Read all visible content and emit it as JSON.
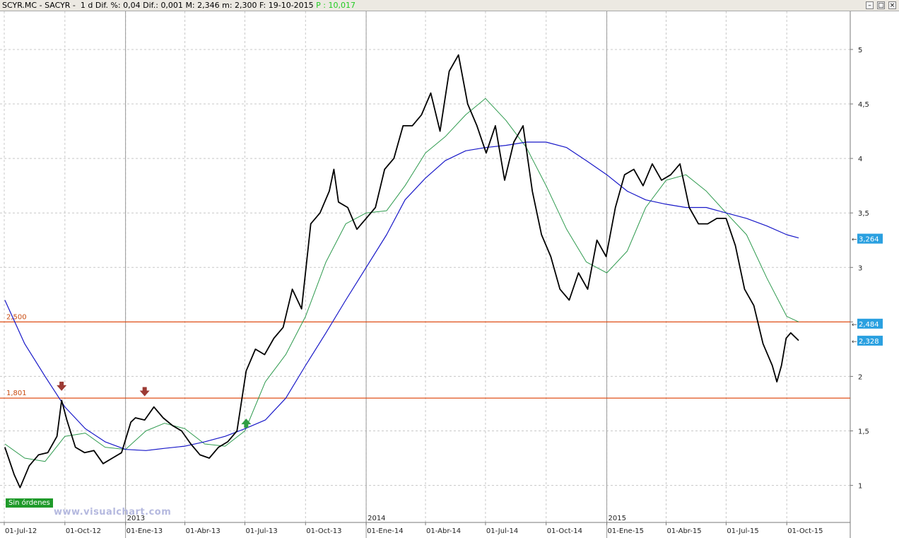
{
  "header": {
    "symbol": "SCYR.MC - SACYR -",
    "period": "1 d",
    "dif_pct_label": "Dif. %: 0,04",
    "dif_label": "Dif.: 0,001",
    "max_label": "M: 2,346",
    "min_label": "m: 2,300",
    "date_label": "F: 19-10-2015",
    "p_label": "P : 10,017"
  },
  "window_buttons": {
    "minimize": "–",
    "maximize": "□",
    "close": "×"
  },
  "watermark": "www.visualchart.com",
  "status_badge": "Sin órdenes",
  "colors": {
    "price": "#000000",
    "ma_short": "#2e9a4e",
    "ma_long": "#1818c8",
    "level_line": "#e05018",
    "level_label": "#c84b10",
    "badge_bg": "#2aa0e0",
    "arrow_down": "#9c3a34",
    "arrow_up": "#2f9e44",
    "grid": "#c8c8c8"
  },
  "chart_data": {
    "type": "line",
    "title": "SCYR.MC - SACYR -",
    "xlabel": "",
    "ylabel": "",
    "ylim": [
      0.66,
      5.35
    ],
    "y_ticks": [
      {
        "value": 1,
        "label": "1"
      },
      {
        "value": 1.5,
        "label": "1,5"
      },
      {
        "value": 2,
        "label": "2"
      },
      {
        "value": 2.5,
        "label": "2,5"
      },
      {
        "value": 3,
        "label": "3"
      },
      {
        "value": 3.5,
        "label": "3,5"
      },
      {
        "value": 4,
        "label": "4"
      },
      {
        "value": 4.5,
        "label": "4,5"
      },
      {
        "value": 5,
        "label": "5"
      }
    ],
    "x_range": [
      "2012-07-01",
      "2015-10-19"
    ],
    "x_ticks": [
      {
        "date": "2012-07-01",
        "label": "01-Jul-12"
      },
      {
        "date": "2012-10-01",
        "label": "01-Oct-12"
      },
      {
        "date": "2013-01-01",
        "label": "01-Ene-13"
      },
      {
        "date": "2013-04-01",
        "label": "01-Abr-13"
      },
      {
        "date": "2013-07-01",
        "label": "01-Jul-13"
      },
      {
        "date": "2013-10-01",
        "label": "01-Oct-13"
      },
      {
        "date": "2014-01-01",
        "label": "01-Ene-14"
      },
      {
        "date": "2014-04-01",
        "label": "01-Abr-14"
      },
      {
        "date": "2014-07-01",
        "label": "01-Jul-14"
      },
      {
        "date": "2014-10-01",
        "label": "01-Oct-14"
      },
      {
        "date": "2015-01-01",
        "label": "01-Ene-15"
      },
      {
        "date": "2015-04-01",
        "label": "01-Abr-15"
      },
      {
        "date": "2015-07-01",
        "label": "01-Jul-15"
      },
      {
        "date": "2015-10-01",
        "label": "01-Oct-15"
      }
    ],
    "year_markers": [
      {
        "date": "2013-01-01",
        "label": "2013"
      },
      {
        "date": "2014-01-01",
        "label": "2014"
      },
      {
        "date": "2015-01-01",
        "label": "2015"
      }
    ],
    "grid": true,
    "series": [
      {
        "name": "",
        "role": "price",
        "x": [
          "2012-07-02",
          "2012-07-16",
          "2012-07-25",
          "2012-08-08",
          "2012-08-22",
          "2012-09-05",
          "2012-09-19",
          "2012-09-26",
          "2012-10-04",
          "2012-10-17",
          "2012-10-31",
          "2012-11-14",
          "2012-11-28",
          "2012-12-12",
          "2012-12-26",
          "2013-01-09",
          "2013-01-16",
          "2013-01-30",
          "2013-02-13",
          "2013-02-27",
          "2013-03-13",
          "2013-03-27",
          "2013-04-10",
          "2013-04-24",
          "2013-05-08",
          "2013-05-22",
          "2013-06-05",
          "2013-06-19",
          "2013-07-03",
          "2013-07-17",
          "2013-07-31",
          "2013-08-14",
          "2013-08-28",
          "2013-09-11",
          "2013-09-25",
          "2013-10-09",
          "2013-10-23",
          "2013-11-06",
          "2013-11-13",
          "2013-11-20",
          "2013-12-04",
          "2013-12-18",
          "2014-01-01",
          "2014-01-15",
          "2014-01-29",
          "2014-02-12",
          "2014-02-26",
          "2014-03-12",
          "2014-03-26",
          "2014-04-09",
          "2014-04-23",
          "2014-05-07",
          "2014-05-21",
          "2014-06-04",
          "2014-06-18",
          "2014-07-02",
          "2014-07-16",
          "2014-07-30",
          "2014-08-13",
          "2014-08-27",
          "2014-09-10",
          "2014-09-24",
          "2014-10-08",
          "2014-10-22",
          "2014-11-05",
          "2014-11-19",
          "2014-12-03",
          "2014-12-17",
          "2014-12-31",
          "2015-01-14",
          "2015-01-28",
          "2015-02-11",
          "2015-02-25",
          "2015-03-11",
          "2015-03-25",
          "2015-04-08",
          "2015-04-22",
          "2015-05-06",
          "2015-05-20",
          "2015-06-03",
          "2015-06-17",
          "2015-07-01",
          "2015-07-15",
          "2015-07-29",
          "2015-08-12",
          "2015-08-26",
          "2015-09-09",
          "2015-09-16",
          "2015-09-23",
          "2015-09-30",
          "2015-10-07",
          "2015-10-19"
        ],
        "y": [
          1.35,
          1.1,
          0.98,
          1.18,
          1.28,
          1.3,
          1.45,
          1.78,
          1.6,
          1.35,
          1.3,
          1.32,
          1.2,
          1.25,
          1.3,
          1.58,
          1.62,
          1.6,
          1.72,
          1.62,
          1.55,
          1.5,
          1.38,
          1.28,
          1.25,
          1.35,
          1.4,
          1.5,
          2.05,
          2.25,
          2.2,
          2.35,
          2.45,
          2.8,
          2.62,
          3.4,
          3.5,
          3.7,
          3.9,
          3.6,
          3.55,
          3.35,
          3.45,
          3.55,
          3.9,
          4.0,
          4.3,
          4.3,
          4.4,
          4.6,
          4.25,
          4.8,
          4.95,
          4.5,
          4.3,
          4.05,
          4.3,
          3.8,
          4.15,
          4.3,
          3.7,
          3.3,
          3.1,
          2.8,
          2.7,
          2.95,
          2.8,
          3.25,
          3.1,
          3.55,
          3.85,
          3.9,
          3.75,
          3.95,
          3.8,
          3.85,
          3.95,
          3.55,
          3.4,
          3.4,
          3.45,
          3.45,
          3.2,
          2.8,
          2.65,
          2.3,
          2.1,
          1.95,
          2.1,
          2.35,
          2.4,
          2.33
        ]
      },
      {
        "name": "",
        "role": "ma_short",
        "x": [
          "2012-07-02",
          "2012-08-01",
          "2012-09-01",
          "2012-10-01",
          "2012-11-01",
          "2012-12-01",
          "2013-01-01",
          "2013-02-01",
          "2013-03-01",
          "2013-04-01",
          "2013-05-01",
          "2013-06-01",
          "2013-07-01",
          "2013-08-01",
          "2013-09-01",
          "2013-10-01",
          "2013-11-01",
          "2013-12-01",
          "2014-01-01",
          "2014-02-01",
          "2014-03-01",
          "2014-04-01",
          "2014-05-01",
          "2014-06-01",
          "2014-07-01",
          "2014-08-01",
          "2014-09-01",
          "2014-10-01",
          "2014-11-01",
          "2014-12-01",
          "2015-01-01",
          "2015-02-01",
          "2015-03-01",
          "2015-04-01",
          "2015-05-01",
          "2015-06-01",
          "2015-07-01",
          "2015-08-01",
          "2015-09-01",
          "2015-10-01",
          "2015-10-19"
        ],
        "y": [
          1.38,
          1.25,
          1.22,
          1.45,
          1.48,
          1.35,
          1.33,
          1.5,
          1.57,
          1.52,
          1.38,
          1.36,
          1.5,
          1.95,
          2.2,
          2.55,
          3.05,
          3.4,
          3.5,
          3.52,
          3.75,
          4.05,
          4.2,
          4.4,
          4.55,
          4.35,
          4.1,
          3.75,
          3.35,
          3.05,
          2.95,
          3.15,
          3.55,
          3.8,
          3.85,
          3.7,
          3.5,
          3.3,
          2.9,
          2.55,
          2.5
        ]
      },
      {
        "name": "",
        "role": "ma_long",
        "x": [
          "2012-07-02",
          "2012-08-01",
          "2012-09-01",
          "2012-10-01",
          "2012-11-01",
          "2012-12-01",
          "2013-01-01",
          "2013-02-01",
          "2013-03-01",
          "2013-04-01",
          "2013-05-01",
          "2013-06-01",
          "2013-07-01",
          "2013-08-01",
          "2013-09-01",
          "2013-10-01",
          "2013-11-01",
          "2013-12-01",
          "2014-01-01",
          "2014-02-01",
          "2014-03-01",
          "2014-04-01",
          "2014-05-01",
          "2014-06-01",
          "2014-07-01",
          "2014-08-01",
          "2014-09-01",
          "2014-10-01",
          "2014-11-01",
          "2014-12-01",
          "2015-01-01",
          "2015-02-01",
          "2015-03-01",
          "2015-04-01",
          "2015-05-01",
          "2015-06-01",
          "2015-07-01",
          "2015-08-01",
          "2015-09-01",
          "2015-10-01",
          "2015-10-19"
        ],
        "y": [
          2.7,
          2.3,
          2.0,
          1.72,
          1.52,
          1.4,
          1.33,
          1.32,
          1.34,
          1.36,
          1.4,
          1.45,
          1.52,
          1.6,
          1.8,
          2.1,
          2.4,
          2.7,
          3.0,
          3.3,
          3.62,
          3.82,
          3.98,
          4.07,
          4.1,
          4.12,
          4.15,
          4.15,
          4.1,
          3.98,
          3.85,
          3.7,
          3.62,
          3.58,
          3.55,
          3.55,
          3.5,
          3.45,
          3.38,
          3.3,
          3.27
        ]
      }
    ],
    "levels": [
      {
        "value": 2.5,
        "label": "2,500"
      },
      {
        "value": 1.801,
        "label": "1,801"
      }
    ],
    "right_badges": [
      {
        "value": 3.264,
        "label": "3,264"
      },
      {
        "value": 2.484,
        "label": "2,484"
      },
      {
        "value": 2.328,
        "label": "2,328"
      }
    ],
    "markers": [
      {
        "date": "2012-09-26",
        "value": 1.9,
        "direction": "down"
      },
      {
        "date": "2013-01-30",
        "value": 1.85,
        "direction": "down"
      },
      {
        "date": "2013-07-03",
        "value": 1.58,
        "direction": "up"
      }
    ]
  }
}
